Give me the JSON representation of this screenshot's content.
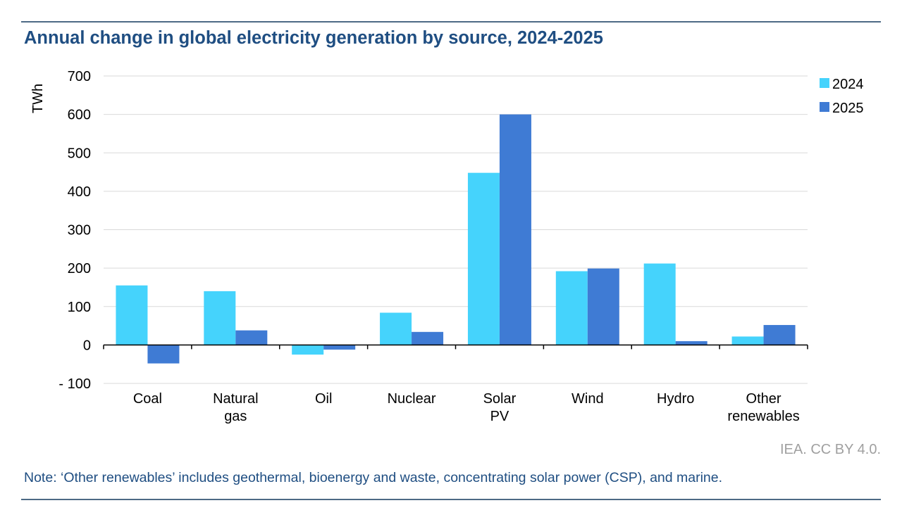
{
  "title": "Annual change in global electricity generation by source, 2024-2025",
  "credit": "IEA. CC BY 4.0.",
  "note": "Note: ‘Other renewables’ includes geothermal, bioenergy and waste, concentrating solar power (CSP), and marine.",
  "chart_data": {
    "type": "bar",
    "title": "Annual change in global electricity generation by source, 2024-2025",
    "ylabel": "TWh",
    "xlabel": "",
    "ylim": [
      -100,
      700
    ],
    "yticks": [
      700,
      600,
      500,
      400,
      300,
      200,
      100,
      0,
      -100
    ],
    "ytick_labels": [
      "700",
      "600",
      "500",
      "400",
      "300",
      "200",
      "100",
      "0",
      "- 100"
    ],
    "grid": true,
    "legend": "top-right",
    "categories": [
      [
        "Coal"
      ],
      [
        "Natural",
        "gas"
      ],
      [
        "Oil"
      ],
      [
        "Nuclear"
      ],
      [
        "Solar",
        "PV"
      ],
      [
        "Wind"
      ],
      [
        "Hydro"
      ],
      [
        "Other",
        "renewables"
      ]
    ],
    "series": [
      {
        "name": "2024",
        "color": "#45d3fc",
        "values": [
          155,
          140,
          -25,
          84,
          448,
          192,
          212,
          22
        ]
      },
      {
        "name": "2025",
        "color": "#3f7bd4",
        "values": [
          -48,
          38,
          -12,
          34,
          600,
          199,
          10,
          52
        ]
      }
    ]
  }
}
